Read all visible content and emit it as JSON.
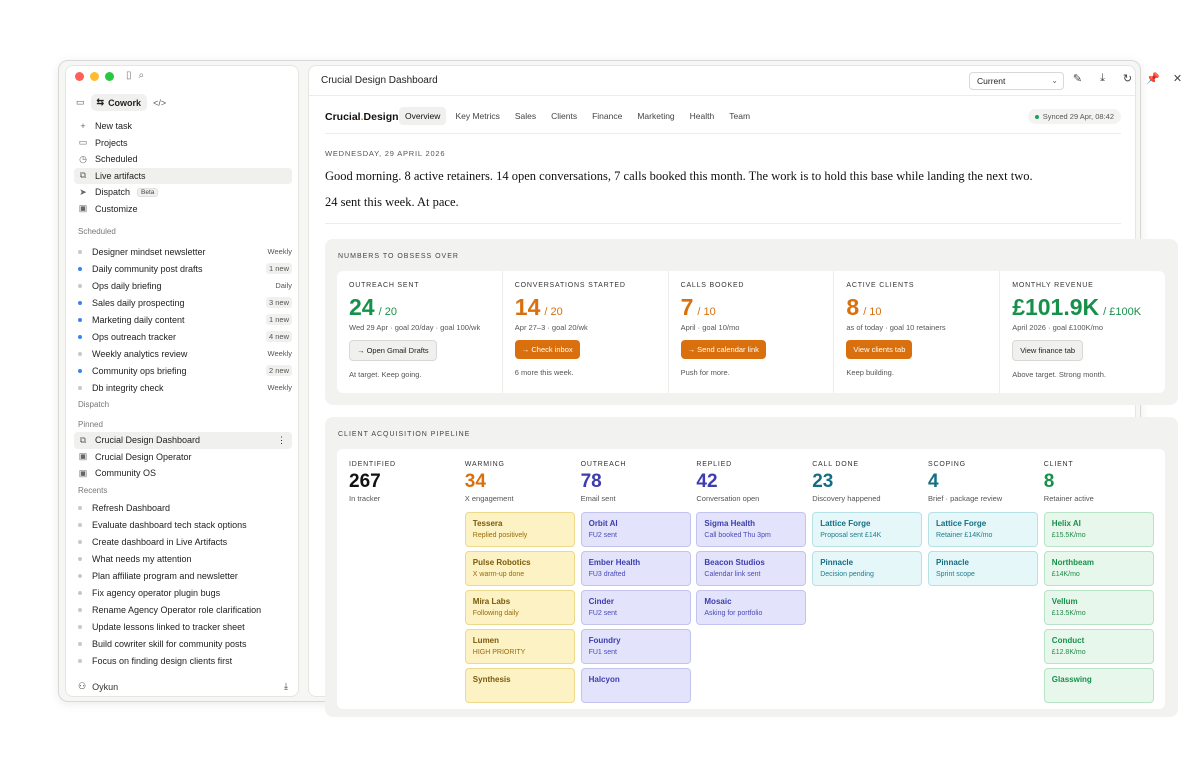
{
  "sidebar": {
    "mode": {
      "cowork_label": "Cowork"
    },
    "nav": [
      {
        "label": "New task",
        "icon": "plus-icon"
      },
      {
        "label": "Projects",
        "icon": "folder-icon"
      },
      {
        "label": "Scheduled",
        "icon": "clock-icon"
      },
      {
        "label": "Live artifacts",
        "icon": "layers-icon"
      },
      {
        "label": "Dispatch",
        "icon": "send-icon",
        "badge": "Beta"
      },
      {
        "label": "Customize",
        "icon": "briefcase-icon"
      }
    ],
    "scheduled_label": "Scheduled",
    "scheduled": [
      {
        "label": "Designer mindset newsletter",
        "count": "Weekly",
        "dot": "grey"
      },
      {
        "label": "Daily community post drafts",
        "count": "1 new",
        "dot": "blue"
      },
      {
        "label": "Ops daily briefing",
        "count": "Daily",
        "dot": "grey"
      },
      {
        "label": "Sales daily prospecting",
        "count": "3 new",
        "dot": "blue"
      },
      {
        "label": "Marketing daily content",
        "count": "1 new",
        "dot": "blue"
      },
      {
        "label": "Ops outreach tracker",
        "count": "4 new",
        "dot": "blue"
      },
      {
        "label": "Weekly analytics review",
        "count": "Weekly",
        "dot": "grey"
      },
      {
        "label": "Community ops briefing",
        "count": "2 new",
        "dot": "blue"
      },
      {
        "label": "Db integrity check",
        "count": "Weekly",
        "dot": "grey"
      }
    ],
    "dispatch_label": "Dispatch",
    "pinned_label": "Pinned",
    "pinned": [
      {
        "label": "Crucial Design Dashboard"
      },
      {
        "label": "Crucial Design Operator"
      },
      {
        "label": "Community OS"
      }
    ],
    "recents_label": "Recents",
    "recents": [
      "Refresh Dashboard",
      "Evaluate dashboard tech stack options",
      "Create dashboard in Live Artifacts",
      "What needs my attention",
      "Plan affiliate program and newsletter",
      "Fix agency operator plugin bugs",
      "Rename Agency Operator role clarification",
      "Update lessons linked to tracker sheet",
      "Build cowriter skill for community posts",
      "Focus on finding design clients first"
    ],
    "user_name": "Oykun"
  },
  "topbar": {
    "title": "Crucial Design Dashboard",
    "version_selected": "Current"
  },
  "header": {
    "brand_a": "Crucial",
    "brand_dot": ".",
    "brand_b": "Design",
    "tabs": [
      "Overview",
      "Key Metrics",
      "Sales",
      "Clients",
      "Finance",
      "Marketing",
      "Health",
      "Team"
    ],
    "synced": "Synced 29 Apr, 08:42"
  },
  "briefing": {
    "date": "WEDNESDAY, 29 APRIL 2026",
    "line1": "Good morning. 8 active retainers. 14 open conversations, 7 calls booked this month. The work is to hold this base while landing the next two.",
    "line2": "24 sent this week. At pace."
  },
  "numbers_title": "NUMBERS TO OBSESS OVER",
  "metrics": [
    {
      "label": "OUTREACH SENT",
      "value": "24",
      "target": "/ 20",
      "color": "#17914a",
      "sub": "Wed 29 Apr · goal 20/day · goal 100/wk",
      "button": "→ Open Gmail Drafts",
      "button_style": "ghost",
      "note": "At target. Keep going."
    },
    {
      "label": "CONVERSATIONS STARTED",
      "value": "14",
      "target": "/ 20",
      "color": "#d9700d",
      "sub": "Apr 27–3 · goal 20/wk",
      "button": "→ Check inbox",
      "button_style": "orange",
      "note": "6 more this week."
    },
    {
      "label": "CALLS BOOKED",
      "value": "7",
      "target": "/ 10",
      "color": "#d9700d",
      "sub": "April · goal 10/mo",
      "button": "→ Send calendar link",
      "button_style": "orange",
      "note": "Push for more."
    },
    {
      "label": "ACTIVE CLIENTS",
      "value": "8",
      "target": "/ 10",
      "color": "#d9700d",
      "sub": "as of today · goal 10 retainers",
      "button": "View clients tab",
      "button_style": "orange",
      "note": "Keep building."
    },
    {
      "label": "MONTHLY REVENUE",
      "value": "£101.9K",
      "target": "/ £100K",
      "color": "#17914a",
      "sub": "April 2026 · goal £100K/mo",
      "button": "View finance tab",
      "button_style": "ghost",
      "note": "Above target. Strong month."
    }
  ],
  "pipeline_title": "CLIENT ACQUISITION PIPELINE",
  "pipeline": [
    {
      "label": "IDENTIFIED",
      "count": "267",
      "sub": "In tracker",
      "color": "#111111",
      "card_style": "",
      "cards": []
    },
    {
      "label": "WARMING",
      "count": "34",
      "sub": "X engagement",
      "color": "#d9700d",
      "card_style": "pc-yellow",
      "cards": [
        {
          "name": "Tessera",
          "note": "Replied positively"
        },
        {
          "name": "Pulse Robotics",
          "note": "X warm-up done"
        },
        {
          "name": "Mira Labs",
          "note": "Following daily"
        },
        {
          "name": "Lumen",
          "note": "HIGH PRIORITY"
        },
        {
          "name": "Synthesis",
          "note": ""
        }
      ]
    },
    {
      "label": "OUTREACH",
      "count": "78",
      "sub": "Email sent",
      "color": "#3d3dae",
      "card_style": "pc-indigo",
      "cards": [
        {
          "name": "Orbit AI",
          "note": "FU2 sent"
        },
        {
          "name": "Ember Health",
          "note": "FU3 drafted"
        },
        {
          "name": "Cinder",
          "note": "FU2 sent"
        },
        {
          "name": "Foundry",
          "note": "FU1 sent"
        },
        {
          "name": "Halcyon",
          "note": ""
        }
      ]
    },
    {
      "label": "REPLIED",
      "count": "42",
      "sub": "Conversation open",
      "color": "#3d3dae",
      "card_style": "pc-indigo",
      "cards": [
        {
          "name": "Sigma Health",
          "note": "Call booked Thu 3pm"
        },
        {
          "name": "Beacon Studios",
          "note": "Calendar link sent"
        },
        {
          "name": "Mosaic",
          "note": "Asking for portfolio"
        }
      ]
    },
    {
      "label": "CALL DONE",
      "count": "23",
      "sub": "Discovery happened",
      "color": "#156e82",
      "card_style": "pc-teal",
      "cards": [
        {
          "name": "Lattice Forge",
          "note": "Proposal sent £14K"
        },
        {
          "name": "Pinnacle",
          "note": "Decision pending"
        }
      ]
    },
    {
      "label": "SCOPING",
      "count": "4",
      "sub": "Brief · package review",
      "color": "#156e82",
      "card_style": "pc-teal",
      "cards": [
        {
          "name": "Lattice Forge",
          "note": "Retainer £14K/mo"
        },
        {
          "name": "Pinnacle",
          "note": "Sprint scope"
        }
      ]
    },
    {
      "label": "CLIENT",
      "count": "8",
      "sub": "Retainer active",
      "color": "#17914a",
      "card_style": "pc-green",
      "cards": [
        {
          "name": "Helix AI",
          "note": "£15.5K/mo"
        },
        {
          "name": "Northbeam",
          "note": "£14K/mo"
        },
        {
          "name": "Vellum",
          "note": "£13.5K/mo"
        },
        {
          "name": "Conduct",
          "note": "£12.8K/mo"
        },
        {
          "name": "Glasswing",
          "note": ""
        }
      ]
    }
  ]
}
